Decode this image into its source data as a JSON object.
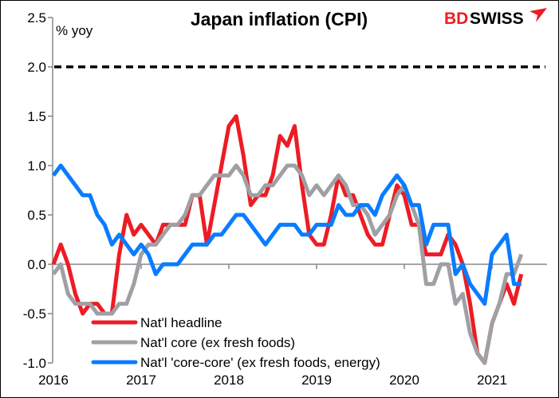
{
  "chart_data": {
    "type": "line",
    "title": "Japan inflation (CPI)",
    "ylabel": "% yoy",
    "xlabel": "",
    "ylim": [
      -1.0,
      2.5
    ],
    "yticks": [
      "2.5",
      "2.0",
      "1.5",
      "1.0",
      "0.5",
      "0.0",
      "-0.5",
      "-1.0"
    ],
    "ytick_values": [
      2.5,
      2.0,
      1.5,
      1.0,
      0.5,
      0.0,
      -0.5,
      -1.0
    ],
    "xticks": [
      "2016",
      "2017",
      "2018",
      "2019",
      "2020",
      "2021"
    ],
    "x_start": "2016-01",
    "x_end": "2021-05",
    "grid": false,
    "legend_position": "bottom-left",
    "reference_line": {
      "value": 2.0,
      "style": "dashed",
      "color": "#000000"
    },
    "series": [
      {
        "name": "Nat'l headline",
        "color": "#ED1C24",
        "values": [
          0.0,
          0.2,
          0.0,
          -0.3,
          -0.5,
          -0.4,
          -0.4,
          -0.5,
          -0.5,
          0.1,
          0.5,
          0.3,
          0.4,
          0.3,
          0.2,
          0.4,
          0.4,
          0.4,
          0.4,
          0.7,
          0.7,
          0.2,
          0.6,
          1.0,
          1.4,
          1.5,
          1.1,
          0.6,
          0.7,
          0.7,
          0.9,
          1.3,
          1.2,
          1.4,
          0.8,
          0.3,
          0.2,
          0.2,
          0.5,
          0.9,
          0.7,
          0.7,
          0.5,
          0.3,
          0.2,
          0.2,
          0.5,
          0.8,
          0.7,
          0.4,
          0.4,
          0.1,
          0.1,
          0.1,
          0.3,
          0.2,
          0.0,
          -0.4,
          -0.9,
          -1.0,
          -0.6,
          -0.4,
          -0.2,
          -0.4,
          -0.1
        ]
      },
      {
        "name": "Nat'l core (ex fresh foods)",
        "color": "#A0A0A4",
        "values": [
          -0.1,
          0.0,
          -0.3,
          -0.4,
          -0.4,
          -0.4,
          -0.5,
          -0.5,
          -0.5,
          -0.4,
          -0.4,
          -0.2,
          0.1,
          0.2,
          0.2,
          0.3,
          0.4,
          0.4,
          0.5,
          0.7,
          0.7,
          0.8,
          0.9,
          0.9,
          0.9,
          1.0,
          0.9,
          0.7,
          0.7,
          0.8,
          0.8,
          0.9,
          1.0,
          1.0,
          0.9,
          0.7,
          0.8,
          0.7,
          0.8,
          0.9,
          0.8,
          0.6,
          0.6,
          0.5,
          0.3,
          0.4,
          0.5,
          0.7,
          0.8,
          0.6,
          0.4,
          -0.2,
          -0.2,
          0.0,
          0.0,
          -0.4,
          -0.3,
          -0.7,
          -0.9,
          -1.0,
          -0.6,
          -0.4,
          -0.1,
          -0.1,
          0.1
        ]
      },
      {
        "name": "Nat'l 'core-core' (ex fresh foods, energy)",
        "color": "#0A7CFF",
        "values": [
          0.9,
          1.0,
          0.9,
          0.8,
          0.7,
          0.7,
          0.5,
          0.4,
          0.2,
          0.3,
          0.2,
          0.1,
          0.2,
          0.1,
          -0.1,
          0.0,
          0.0,
          0.0,
          0.1,
          0.2,
          0.2,
          0.2,
          0.3,
          0.3,
          0.4,
          0.5,
          0.5,
          0.4,
          0.3,
          0.2,
          0.3,
          0.4,
          0.4,
          0.4,
          0.3,
          0.3,
          0.4,
          0.4,
          0.4,
          0.6,
          0.5,
          0.5,
          0.6,
          0.6,
          0.5,
          0.7,
          0.8,
          0.9,
          0.8,
          0.6,
          0.6,
          0.2,
          0.4,
          0.4,
          0.4,
          -0.1,
          0.0,
          -0.2,
          -0.3,
          -0.4,
          0.1,
          0.2,
          0.3,
          -0.2,
          -0.2
        ]
      }
    ]
  },
  "logo": {
    "text_red": "BD",
    "text_black": "SWISS",
    "color_red": "#ED1C24"
  }
}
